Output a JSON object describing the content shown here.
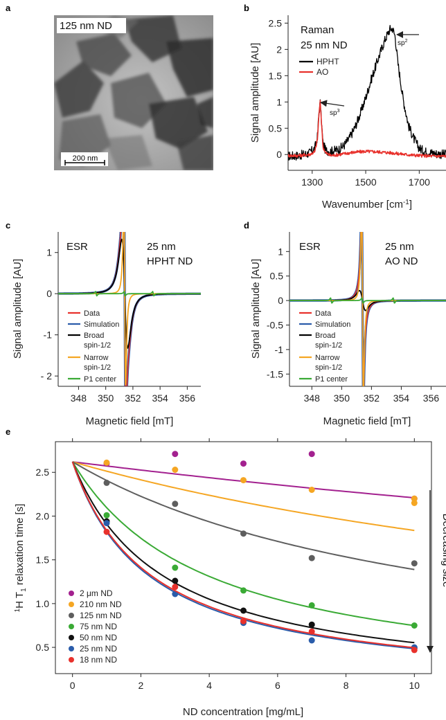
{
  "panel_labels": {
    "a": "a",
    "b": "b",
    "c": "c",
    "d": "d",
    "e": "e"
  },
  "tem": {
    "label": "125 nm ND",
    "scale_bar": "200 nm"
  },
  "colors": {
    "black": "#000000",
    "red": "#e8312c",
    "blue": "#2a5caa",
    "orange": "#f5a623",
    "green": "#3aaa35",
    "magenta": "#a3218f",
    "gray": "#5e5e5e"
  },
  "chart_data": [
    {
      "id": "raman",
      "type": "line",
      "title": "",
      "annotation": [
        "Raman",
        "25 nm ND"
      ],
      "xlabel": "Wavenumber [cm-1]",
      "xlabel_main": "Wavenumber [cm",
      "xlabel_sup": "-1",
      "xlabel_end": "]",
      "ylabel": "Signal amplitude [AU]",
      "xlim": [
        1210,
        1800
      ],
      "ylim": [
        -0.3,
        2.65
      ],
      "xticks": [
        1300,
        1500,
        1700
      ],
      "yticks": [
        0,
        0.5,
        1,
        1.5,
        2,
        2.5
      ],
      "ytick_labels": [
        "0",
        "0.5",
        "1",
        "1.5",
        "2",
        "2.5"
      ],
      "legend_position": "middle-left",
      "arrows": [
        {
          "label": "sp3",
          "text": "sp",
          "sup": "3"
        },
        {
          "label": "sp2",
          "text": "sp",
          "sup": "2"
        }
      ],
      "series": [
        {
          "name": "HPHT",
          "color": "#000000",
          "noise": 0.09,
          "x": [
            1210,
            1250,
            1290,
            1310,
            1320,
            1325,
            1330,
            1335,
            1340,
            1350,
            1370,
            1400,
            1420,
            1440,
            1460,
            1480,
            1500,
            1520,
            1540,
            1560,
            1575,
            1590,
            1600,
            1610,
            1620,
            1640,
            1660,
            1680,
            1700,
            1720,
            1760,
            1800
          ],
          "y": [
            -0.03,
            -0.02,
            0.03,
            0.12,
            0.35,
            0.8,
            0.98,
            0.6,
            0.22,
            0.08,
            0.06,
            0.1,
            0.18,
            0.32,
            0.52,
            0.78,
            1.08,
            1.42,
            1.72,
            2.02,
            2.22,
            2.38,
            2.4,
            2.25,
            1.75,
            1.05,
            0.55,
            0.3,
            0.12,
            0.06,
            0.02,
            0.0
          ]
        },
        {
          "name": "AO",
          "color": "#e8312c",
          "noise": 0.03,
          "x": [
            1210,
            1250,
            1290,
            1310,
            1320,
            1325,
            1330,
            1335,
            1340,
            1350,
            1370,
            1400,
            1450,
            1500,
            1550,
            1600,
            1650,
            1700,
            1750,
            1800
          ],
          "y": [
            -0.02,
            -0.02,
            0.0,
            0.05,
            0.3,
            0.75,
            1.0,
            0.6,
            0.15,
            0.03,
            -0.02,
            0.0,
            0.04,
            0.06,
            0.05,
            0.03,
            0.0,
            -0.02,
            -0.03,
            -0.03
          ]
        }
      ]
    },
    {
      "id": "esr_hpht",
      "type": "line",
      "title": "",
      "annotation": [
        "ESR",
        "25 nm",
        "HPHT ND"
      ],
      "xlabel": "Magnetic field [mT]",
      "ylabel": "Signal amplitude [AU]",
      "xlim": [
        346.5,
        357
      ],
      "ylim": [
        -2.25,
        1.5
      ],
      "xticks": [
        348,
        350,
        352,
        354,
        356
      ],
      "yticks": [
        -2,
        -1,
        0,
        1
      ],
      "ytick_labels": [
        "- 2",
        "-1",
        "0",
        "1"
      ],
      "center": 351.4,
      "legend": [
        "Data",
        "Simulation",
        "Broad",
        "spin-1/2",
        "Narrow",
        "spin-1/2",
        "P1 center"
      ],
      "series": [
        {
          "name": "Data",
          "color": "#e8312c",
          "kind": "sum",
          "w_broad": 0.38,
          "a_broad": 0.78,
          "w_narrow": 0.11,
          "a_narrow": 1.32
        },
        {
          "name": "Simulation",
          "color": "#2a5caa",
          "kind": "sum",
          "w_broad": 0.38,
          "a_broad": 0.78,
          "w_narrow": 0.11,
          "a_narrow": 1.32
        },
        {
          "name": "Broad spin-1/2",
          "color": "#000000",
          "kind": "single",
          "w": 0.38,
          "a": 0.78
        },
        {
          "name": "Narrow spin-1/2",
          "color": "#f5a623",
          "kind": "single",
          "w": 0.11,
          "a": 1.32
        },
        {
          "name": "P1 center",
          "color": "#3aaa35",
          "kind": "p1",
          "a": 0.03
        }
      ]
    },
    {
      "id": "esr_ao",
      "type": "line",
      "title": "",
      "annotation": [
        "ESR",
        "25 nm",
        "AO ND"
      ],
      "xlabel": "Magnetic field [mT]",
      "ylabel": "Signal amplitude [AU]",
      "xlim": [
        346.5,
        357
      ],
      "ylim": [
        -1.75,
        1.4
      ],
      "xticks": [
        348,
        350,
        352,
        354,
        356
      ],
      "yticks": [
        -1.5,
        -1,
        -0.5,
        0,
        0.5,
        1
      ],
      "ytick_labels": [
        "-1.5",
        "-1",
        "-0.5",
        "0",
        "0.5",
        "1"
      ],
      "center": 351.4,
      "legend": [
        "Data",
        "Simulation",
        "Broad",
        "spin-1/2",
        "Narrow",
        "spin-1/2",
        "P1 center"
      ],
      "series": [
        {
          "name": "Data",
          "color": "#e8312c",
          "kind": "sum",
          "w_broad": 0.35,
          "a_broad": 0.12,
          "w_narrow": 0.1,
          "a_narrow": 1.15
        },
        {
          "name": "Simulation",
          "color": "#2a5caa",
          "kind": "sum",
          "w_broad": 0.35,
          "a_broad": 0.12,
          "w_narrow": 0.1,
          "a_narrow": 1.15
        },
        {
          "name": "Broad spin-1/2",
          "color": "#000000",
          "kind": "single",
          "w": 0.35,
          "a": 0.12
        },
        {
          "name": "Narrow spin-1/2",
          "color": "#f5a623",
          "kind": "single",
          "w": 0.1,
          "a": 1.15
        },
        {
          "name": "P1 center",
          "color": "#3aaa35",
          "kind": "p1",
          "a": 0.03
        }
      ]
    },
    {
      "id": "relaxation",
      "type": "scatter",
      "title": "",
      "xlabel": "ND concentration [mg/mL]",
      "ylabel": "1H T1 relaxation time [s]",
      "xlim": [
        -0.5,
        10.5
      ],
      "ylim": [
        0.2,
        2.85
      ],
      "xticks": [
        0,
        2,
        4,
        6,
        8,
        10
      ],
      "yticks": [
        0.5,
        1.0,
        1.5,
        2.0,
        2.5
      ],
      "ytick_labels": [
        "0.5",
        "1.0",
        "1.5",
        "2.0",
        "2.5"
      ],
      "legend_position": "bottom-left",
      "arrow_label": "Decreasing size",
      "T0": 2.62,
      "series": [
        {
          "name": "2 μm ND",
          "color": "#a3218f",
          "r1": 0.0071,
          "x": [
            1,
            3,
            5,
            7,
            10
          ],
          "y": [
            2.6,
            2.71,
            2.6,
            2.71,
            2.2
          ]
        },
        {
          "name": "210 nm ND",
          "color": "#f5a623",
          "r1": 0.0163,
          "x": [
            1,
            3,
            5,
            7,
            10,
            10
          ],
          "y": [
            2.61,
            2.53,
            2.41,
            2.3,
            2.2,
            2.15
          ]
        },
        {
          "name": "125 nm ND",
          "color": "#5e5e5e",
          "r1": 0.0338,
          "x": [
            1,
            3,
            5,
            7,
            10
          ],
          "y": [
            2.38,
            2.14,
            1.8,
            1.52,
            1.46
          ]
        },
        {
          "name": "75 nm ND",
          "color": "#3aaa35",
          "r1": 0.0953,
          "x": [
            1,
            3,
            5,
            7,
            10
          ],
          "y": [
            2.01,
            1.41,
            1.15,
            0.98,
            0.75
          ]
        },
        {
          "name": "50 nm ND",
          "color": "#111111",
          "r1": 0.1424,
          "x": [
            1,
            3,
            5,
            7,
            10
          ],
          "y": [
            1.94,
            1.26,
            0.92,
            0.76,
            0.49
          ]
        },
        {
          "name": "25 nm ND",
          "color": "#2a5caa",
          "r1": 0.1682,
          "x": [
            1,
            3,
            5,
            7,
            10
          ],
          "y": [
            1.92,
            1.11,
            0.78,
            0.58,
            0.5
          ]
        },
        {
          "name": "18 nm ND",
          "color": "#e8312c",
          "r1": 0.1632,
          "x": [
            1,
            3,
            5,
            7,
            10
          ],
          "y": [
            1.82,
            1.19,
            0.8,
            0.68,
            0.47
          ]
        }
      ]
    }
  ]
}
